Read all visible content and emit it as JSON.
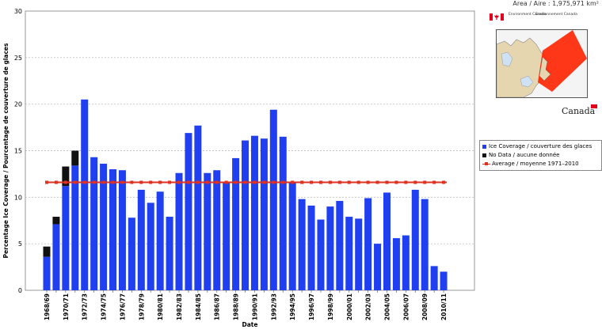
{
  "header": {
    "area_text": "Area / Aire : 1,975,971 km²"
  },
  "logo": {
    "dept_en": "Environment Canada",
    "dept_fr": "Environnement Canada",
    "wordmark": "Canada"
  },
  "colors": {
    "coverage": "#1f3ff0",
    "nodata": "#111111",
    "average": "#e03020",
    "grid": "#b0b0b0"
  },
  "chart_data": {
    "type": "bar",
    "xlabel": "Date",
    "ylabel": "Percentage Ice Coverage / Pourcentage de couverture de glaces",
    "ylim": [
      0,
      30
    ],
    "yticks": [
      0,
      5,
      10,
      15,
      20,
      25,
      30
    ],
    "grid": "horizontal dashed",
    "categories": [
      "1968/69",
      "1969/70",
      "1970/71",
      "1971/72",
      "1972/73",
      "1973/74",
      "1974/75",
      "1975/76",
      "1976/77",
      "1977/78",
      "1978/79",
      "1979/80",
      "1980/81",
      "1981/82",
      "1982/83",
      "1983/84",
      "1984/85",
      "1985/86",
      "1986/87",
      "1987/88",
      "1988/89",
      "1989/90",
      "1990/91",
      "1991/92",
      "1992/93",
      "1993/94",
      "1994/95",
      "1995/96",
      "1996/97",
      "1997/98",
      "1998/99",
      "1999/00",
      "2000/01",
      "2001/02",
      "2002/03",
      "2003/04",
      "2004/05",
      "2005/06",
      "2006/07",
      "2007/08",
      "2008/09",
      "2009/10",
      "2010/11"
    ],
    "tick_labels": [
      "1968/69",
      "1970/71",
      "1972/73",
      "1974/75",
      "1976/77",
      "1978/79",
      "1980/81",
      "1982/83",
      "1984/85",
      "1986/87",
      "1988/89",
      "1990/91",
      "1992/93",
      "1994/95",
      "1996/97",
      "1998/99",
      "2000/01",
      "2002/03",
      "2004/05",
      "2006/07",
      "2008/09",
      "2010/11"
    ],
    "series": [
      {
        "name": "Ice Coverage / couverture des glaces",
        "type": "bar",
        "values": [
          3.6,
          7.1,
          11.2,
          13.4,
          20.5,
          14.3,
          13.6,
          13.0,
          12.9,
          7.8,
          10.8,
          9.4,
          10.6,
          7.9,
          12.6,
          16.9,
          17.7,
          12.6,
          12.9,
          11.6,
          14.2,
          16.1,
          16.6,
          16.3,
          19.4,
          16.5,
          11.6,
          9.8,
          9.1,
          7.6,
          9.0,
          9.6,
          7.9,
          7.7,
          9.9,
          5.0,
          10.5,
          5.6,
          5.9,
          10.8,
          9.8,
          2.6,
          2.0
        ]
      },
      {
        "name": "No Data / aucune donnée",
        "type": "stacked-bar",
        "values": [
          1.1,
          0.8,
          2.1,
          1.6,
          0,
          0,
          0,
          0,
          0,
          0,
          0,
          0,
          0,
          0,
          0,
          0,
          0,
          0,
          0,
          0,
          0,
          0,
          0,
          0,
          0,
          0,
          0,
          0,
          0,
          0,
          0,
          0,
          0,
          0,
          0,
          0,
          0,
          0,
          0,
          0,
          0,
          0,
          0
        ]
      },
      {
        "name": "Average / moyenne 1971–2010",
        "type": "line",
        "value": 11.6
      }
    ],
    "legend_position": "right"
  }
}
